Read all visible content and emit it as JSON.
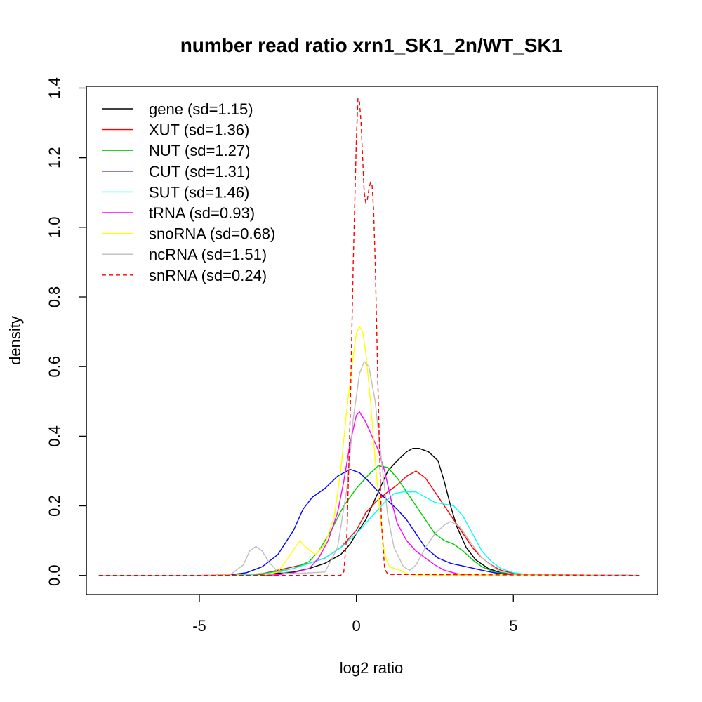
{
  "chart_data": {
    "type": "line",
    "title": "number read ratio xrn1_SK1_2n/WT_SK1",
    "xlabel": "log2 ratio",
    "ylabel": "density",
    "xlim": [
      -8.6,
      9.6
    ],
    "ylim": [
      -0.055,
      1.405
    ],
    "x_ticks": [
      -5,
      0,
      5
    ],
    "x_tick_labels": [
      "-5",
      "0",
      "5"
    ],
    "y_ticks": [
      0.0,
      0.2,
      0.4,
      0.6,
      0.8,
      1.0,
      1.2,
      1.4
    ],
    "y_tick_labels": [
      "0.0",
      "0.2",
      "0.4",
      "0.6",
      "0.8",
      "1.0",
      "1.2",
      "1.4"
    ],
    "legend_position": "top-left",
    "grid": false,
    "series": [
      {
        "name": "gene (sd=1.15)",
        "color": "#000000",
        "dash": "solid",
        "x": [
          -8.2,
          -4,
          -3,
          -2,
          -1.5,
          -1,
          -0.5,
          -0.2,
          0,
          0.3,
          0.5,
          0.8,
          1.0,
          1.3,
          1.6,
          1.8,
          2.0,
          2.3,
          2.6,
          2.8,
          3.0,
          3.2,
          3.5,
          3.8,
          4.2,
          4.6,
          5.0,
          5.5,
          9.0
        ],
        "y": [
          0,
          0,
          0.003,
          0.01,
          0.02,
          0.035,
          0.06,
          0.09,
          0.12,
          0.16,
          0.2,
          0.26,
          0.3,
          0.33,
          0.355,
          0.365,
          0.365,
          0.355,
          0.33,
          0.27,
          0.2,
          0.14,
          0.08,
          0.045,
          0.02,
          0.008,
          0.003,
          0,
          0
        ]
      },
      {
        "name": "XUT (sd=1.36)",
        "color": "#ff0000",
        "dash": "solid",
        "x": [
          -8.2,
          -4,
          -3,
          -2.5,
          -2,
          -1.5,
          -1,
          -0.5,
          0,
          0.3,
          0.6,
          1.0,
          1.3,
          1.6,
          1.9,
          2.2,
          2.5,
          2.8,
          3.1,
          3.4,
          3.7,
          4.0,
          4.3,
          4.6,
          5.0,
          5.5,
          9.0
        ],
        "y": [
          0,
          0,
          0.005,
          0.015,
          0.025,
          0.035,
          0.05,
          0.08,
          0.13,
          0.18,
          0.21,
          0.24,
          0.26,
          0.285,
          0.3,
          0.28,
          0.24,
          0.2,
          0.16,
          0.12,
          0.08,
          0.05,
          0.03,
          0.015,
          0.006,
          0.002,
          0
        ]
      },
      {
        "name": "NUT (sd=1.27)",
        "color": "#00cd00",
        "dash": "solid",
        "x": [
          -8.2,
          -4,
          -3,
          -2.5,
          -2,
          -1.5,
          -1.2,
          -0.8,
          -0.4,
          0,
          0.4,
          0.7,
          1.0,
          1.3,
          1.6,
          1.9,
          2.2,
          2.5,
          2.8,
          3.1,
          3.4,
          3.7,
          4.0,
          4.4,
          4.8,
          5.3,
          9.0
        ],
        "y": [
          0,
          0,
          0.005,
          0.012,
          0.02,
          0.04,
          0.07,
          0.13,
          0.2,
          0.25,
          0.29,
          0.315,
          0.31,
          0.28,
          0.24,
          0.2,
          0.16,
          0.12,
          0.1,
          0.09,
          0.07,
          0.045,
          0.025,
          0.01,
          0.004,
          0.001,
          0
        ]
      },
      {
        "name": "CUT (sd=1.31)",
        "color": "#0000ff",
        "dash": "solid",
        "x": [
          -8.2,
          -5,
          -4,
          -3.5,
          -3,
          -2.5,
          -2,
          -1.7,
          -1.4,
          -1.0,
          -0.6,
          -0.2,
          0.1,
          0.4,
          0.7,
          1.0,
          1.3,
          1.6,
          1.9,
          2.2,
          2.6,
          3.0,
          3.5,
          4.0,
          4.5,
          5.0,
          5.5,
          9.0
        ],
        "y": [
          0,
          0,
          0.002,
          0.008,
          0.025,
          0.06,
          0.13,
          0.19,
          0.225,
          0.25,
          0.285,
          0.305,
          0.295,
          0.27,
          0.24,
          0.215,
          0.19,
          0.16,
          0.12,
          0.08,
          0.05,
          0.035,
          0.025,
          0.015,
          0.006,
          0.002,
          0.001,
          0
        ]
      },
      {
        "name": "SUT (sd=1.46)",
        "color": "#00ffff",
        "dash": "solid",
        "x": [
          -8.2,
          -4,
          -3,
          -2.5,
          -2,
          -1.5,
          -1,
          -0.5,
          0,
          0.5,
          0.9,
          1.2,
          1.5,
          1.9,
          2.2,
          2.5,
          2.8,
          3.1,
          3.4,
          3.7,
          4.0,
          4.3,
          4.6,
          5.0,
          5.5,
          9.0
        ],
        "y": [
          0,
          0,
          0.004,
          0.01,
          0.02,
          0.035,
          0.05,
          0.08,
          0.12,
          0.17,
          0.21,
          0.235,
          0.24,
          0.24,
          0.225,
          0.21,
          0.205,
          0.2,
          0.17,
          0.12,
          0.07,
          0.04,
          0.02,
          0.008,
          0.002,
          0
        ]
      },
      {
        "name": "tRNA (sd=0.93)",
        "color": "#ff00ff",
        "dash": "solid",
        "x": [
          -8.2,
          -3,
          -2.5,
          -2,
          -1.5,
          -1.2,
          -0.9,
          -0.6,
          -0.4,
          -0.2,
          0,
          0.1,
          0.3,
          0.5,
          0.7,
          0.9,
          1.1,
          1.3,
          1.6,
          1.9,
          2.2,
          2.5,
          2.8,
          3.2,
          3.6,
          9.0
        ],
        "y": [
          0,
          0,
          0.002,
          0.008,
          0.02,
          0.05,
          0.1,
          0.18,
          0.27,
          0.38,
          0.46,
          0.47,
          0.44,
          0.4,
          0.36,
          0.3,
          0.22,
          0.15,
          0.1,
          0.07,
          0.05,
          0.03,
          0.015,
          0.005,
          0.001,
          0
        ]
      },
      {
        "name": "snoRNA (sd=0.68)",
        "color": "#ffff00",
        "dash": "solid",
        "x": [
          -8.2,
          -3,
          -2.5,
          -2.1,
          -1.8,
          -1.6,
          -1.3,
          -1.0,
          -0.7,
          -0.5,
          -0.3,
          -0.1,
          0,
          0.1,
          0.2,
          0.3,
          0.45,
          0.6,
          0.75,
          0.9,
          1.05,
          1.2,
          1.4,
          1.6,
          1.9,
          9.0
        ],
        "y": [
          0,
          0,
          0.01,
          0.06,
          0.1,
          0.08,
          0.06,
          0.09,
          0.17,
          0.3,
          0.48,
          0.63,
          0.695,
          0.715,
          0.7,
          0.64,
          0.5,
          0.33,
          0.18,
          0.06,
          0.025,
          0.02,
          0.015,
          0.005,
          0.001,
          0
        ]
      },
      {
        "name": "ncRNA (sd=1.51)",
        "color": "#bebebe",
        "dash": "solid",
        "x": [
          -8.2,
          -5,
          -4.0,
          -3.6,
          -3.4,
          -3.2,
          -3.0,
          -2.8,
          -2.5,
          -2.0,
          -1.0,
          -0.6,
          -0.3,
          -0.1,
          0.1,
          0.25,
          0.4,
          0.6,
          0.8,
          1.0,
          1.2,
          1.5,
          1.7,
          1.9,
          2.2,
          2.5,
          2.8,
          3.0,
          3.3,
          3.6,
          4.0,
          4.5,
          5.0,
          9.0
        ],
        "y": [
          0,
          0,
          0.003,
          0.03,
          0.07,
          0.083,
          0.07,
          0.04,
          0.01,
          0.005,
          0.01,
          0.08,
          0.25,
          0.45,
          0.58,
          0.615,
          0.6,
          0.5,
          0.33,
          0.17,
          0.08,
          0.025,
          0.015,
          0.03,
          0.08,
          0.12,
          0.145,
          0.155,
          0.14,
          0.1,
          0.05,
          0.015,
          0.003,
          0
        ]
      },
      {
        "name": "snRNA (sd=0.24)",
        "color": "#ff0000",
        "dash": "dashed",
        "x": [
          -8.2,
          -0.5,
          -0.4,
          -0.3,
          -0.2,
          -0.1,
          0,
          0.05,
          0.1,
          0.15,
          0.2,
          0.25,
          0.3,
          0.35,
          0.4,
          0.45,
          0.5,
          0.55,
          0.6,
          0.7,
          0.8,
          0.9,
          1.0,
          9.0
        ],
        "y": [
          0,
          0,
          0.01,
          0.12,
          0.45,
          0.9,
          1.25,
          1.37,
          1.36,
          1.3,
          1.2,
          1.1,
          1.07,
          1.08,
          1.11,
          1.13,
          1.12,
          1.05,
          0.9,
          0.5,
          0.15,
          0.02,
          0.003,
          0
        ]
      }
    ]
  }
}
